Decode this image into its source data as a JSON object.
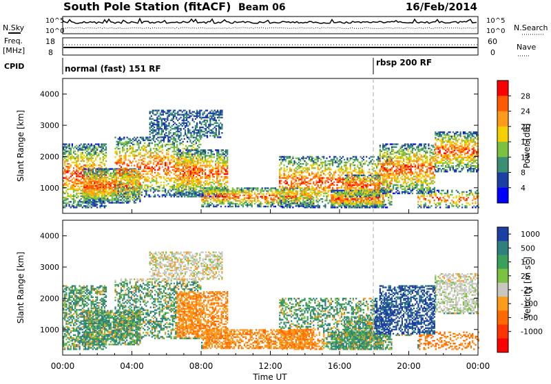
{
  "header": {
    "title": "South Pole Station (fitACF)",
    "beam": "Beam 06",
    "date": "16/Feb/2014"
  },
  "noise_panel": {
    "left_label": "N.Sky",
    "right_label": "N.Search",
    "left_ticks": [
      "10^5",
      "10^0"
    ],
    "right_ticks": [
      "10^5",
      "10^0"
    ]
  },
  "freq_panel": {
    "left_label_1": "Freq.",
    "left_label_2": "[MHz]",
    "right_label": "Nave",
    "left_ticks": [
      "18",
      "8"
    ],
    "right_ticks": [
      "60",
      "0"
    ]
  },
  "cpid_panel": {
    "label": "CPID",
    "modes": [
      {
        "name": "normal (fast) 151 RF",
        "start_hour": 0
      },
      {
        "name": "rbsp 200 RF",
        "start_hour": 18
      }
    ]
  },
  "chart_data": [
    {
      "type": "heatmap",
      "title": "",
      "xlabel": "",
      "ylabel": "Slant Range [km]",
      "xlim": [
        0,
        24
      ],
      "ylim": [
        180,
        4500
      ],
      "y_ticks": [
        1000,
        2000,
        3000,
        4000
      ],
      "colorbar": {
        "label": "Power [dB]",
        "ticks": [
          "28",
          "24",
          "20",
          "16",
          "12",
          "8",
          "4"
        ],
        "colors": [
          "#ff0000",
          "#ff5a00",
          "#ff9a1a",
          "#f5d000",
          "#7cc242",
          "#3a8f72",
          "#1b3fa3",
          "#0000ff"
        ]
      }
    },
    {
      "type": "heatmap",
      "title": "",
      "xlabel": "Time UT",
      "ylabel": "Slant Range [km]",
      "xlim": [
        0,
        24
      ],
      "ylim": [
        180,
        4500
      ],
      "y_ticks": [
        1000,
        2000,
        3000,
        4000
      ],
      "x_ticks": [
        "00:00",
        "04:00",
        "08:00",
        "12:00",
        "16:00",
        "20:00",
        "00:00"
      ],
      "colorbar": {
        "label": "Velocity [m s^-1]",
        "ticks": [
          "1000",
          "500",
          "100",
          "25",
          "-25",
          "-100",
          "-500",
          "-1000"
        ],
        "colors": [
          "#1b3fa3",
          "#2f7f7f",
          "#3aa05a",
          "#7cc242",
          "#c8c8c0",
          "#ff9a1a",
          "#ff6a00",
          "#ff3300",
          "#ff0000"
        ]
      }
    }
  ]
}
